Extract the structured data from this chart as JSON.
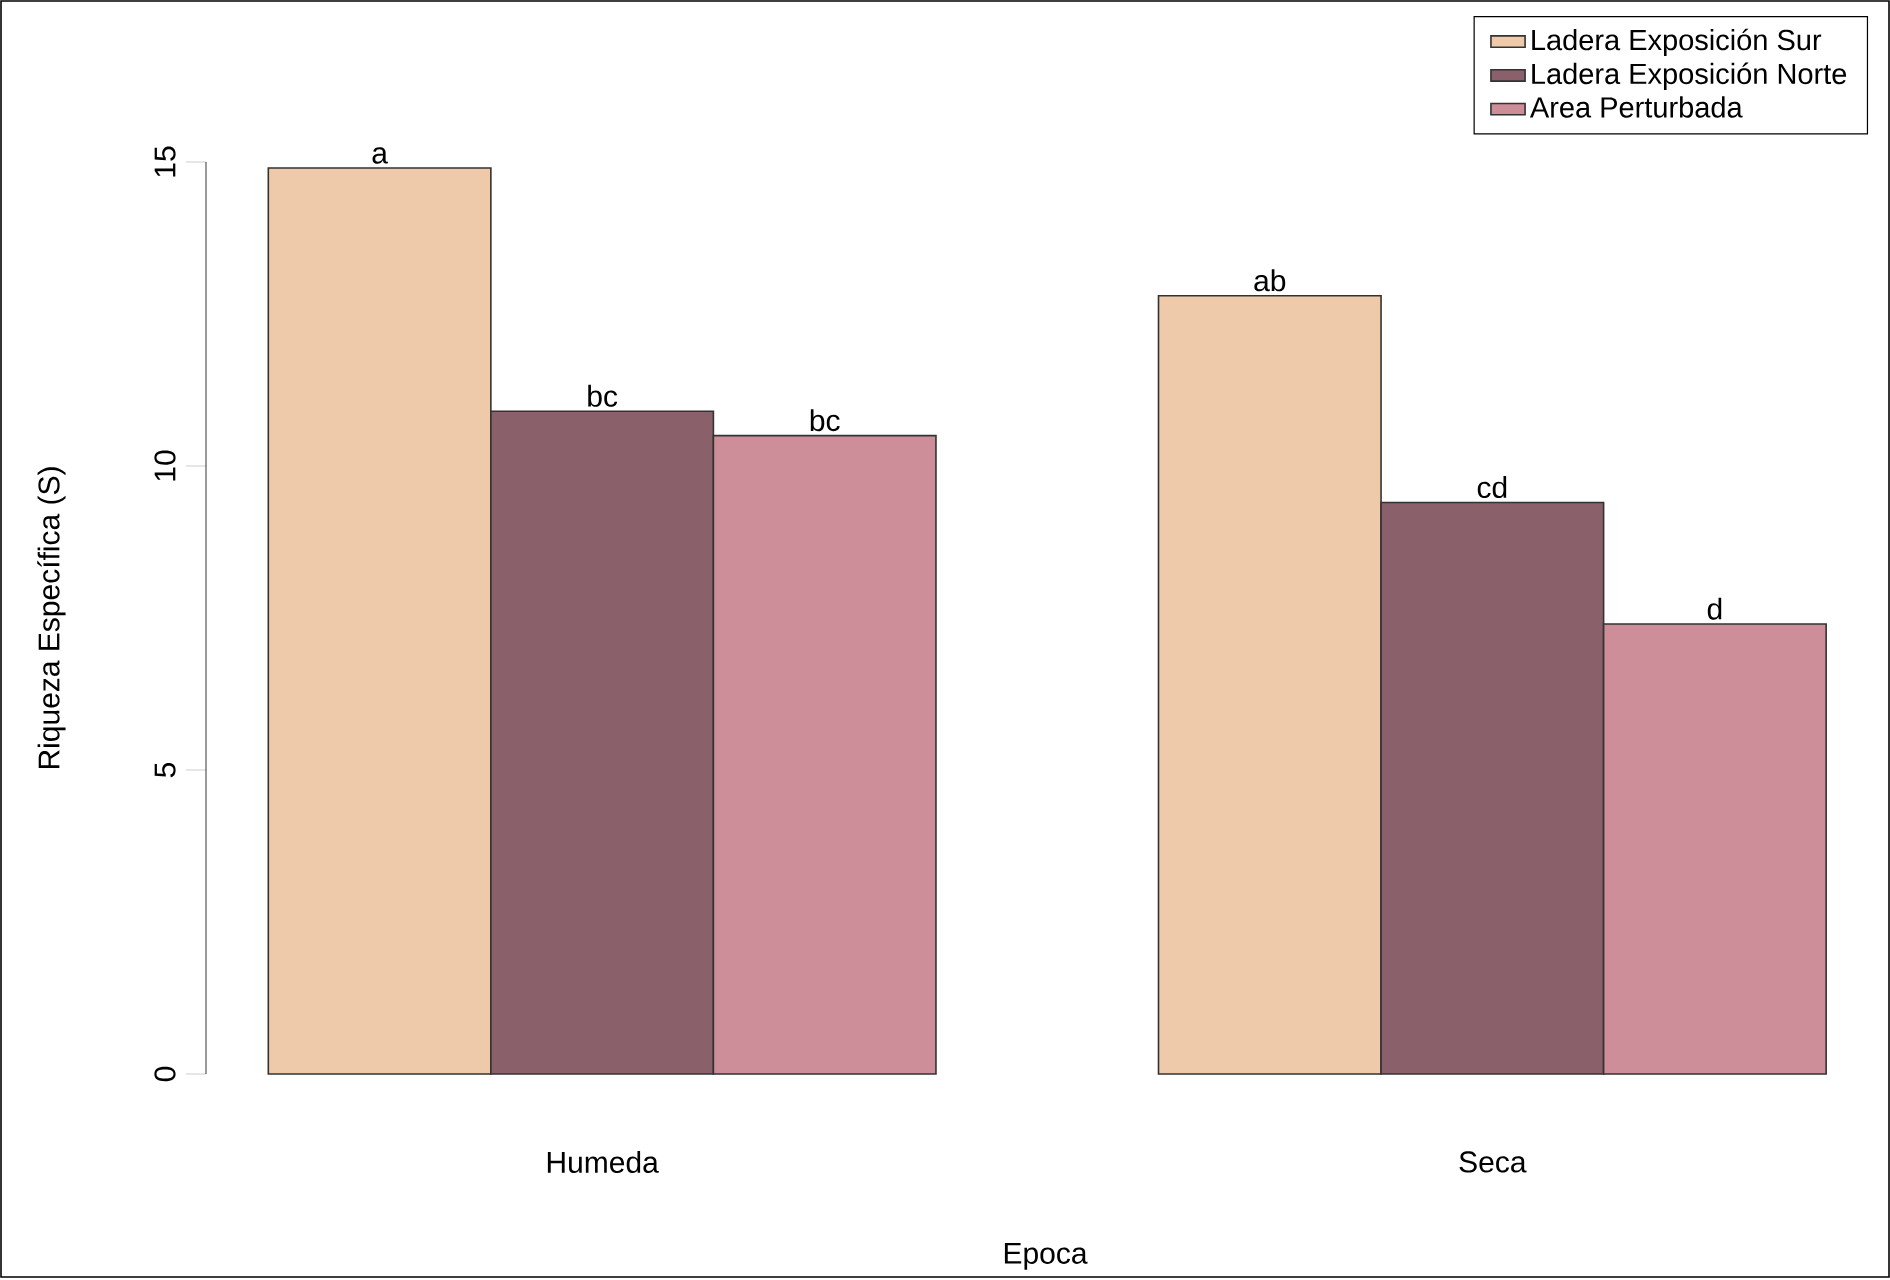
{
  "chart_data": {
    "type": "bar",
    "xlabel": "Epoca",
    "ylabel": "Riqueza Específica (S)",
    "categories": [
      "Humeda",
      "Seca"
    ],
    "series": [
      {
        "name": "Ladera Exposición Sur",
        "color": "#eecaab",
        "values": [
          14.9,
          12.8
        ],
        "value_labels": [
          "a",
          "ab"
        ]
      },
      {
        "name": "Ladera Exposición Norte",
        "color": "#8a616b",
        "values": [
          10.9,
          9.4
        ],
        "value_labels": [
          "bc",
          "cd"
        ]
      },
      {
        "name": "Area Perturbada",
        "color": "#cd8e9a",
        "values": [
          10.5,
          7.4
        ],
        "value_labels": [
          "bc",
          "d"
        ]
      }
    ],
    "ylim": [
      0,
      15
    ],
    "yticks": [
      0,
      5,
      10,
      15
    ],
    "grid": false,
    "legend": "top right"
  }
}
